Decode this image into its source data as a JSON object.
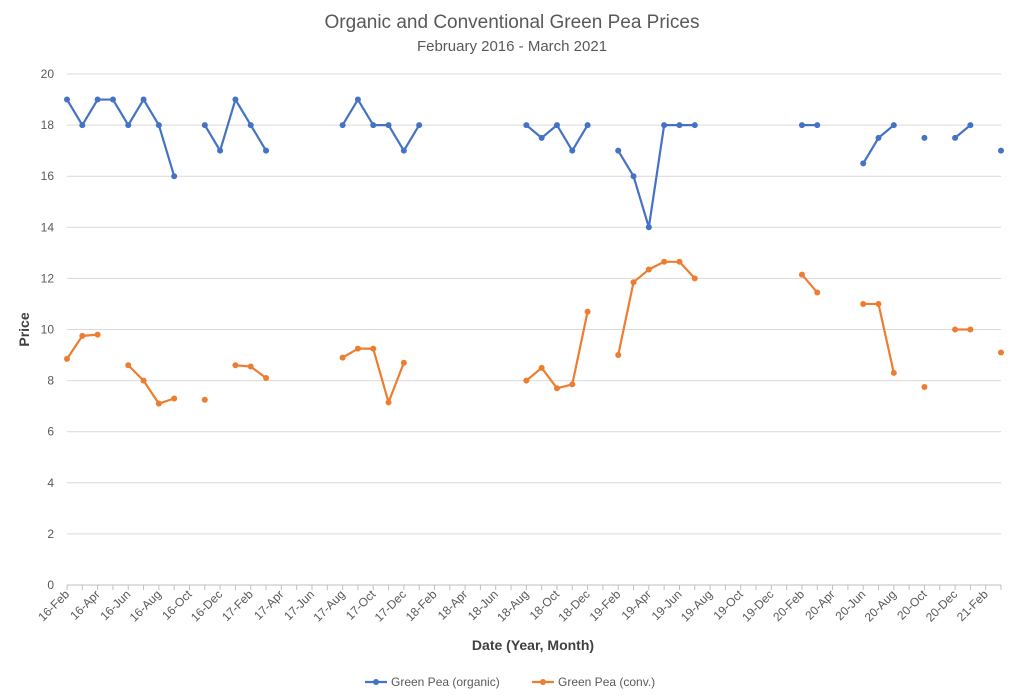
{
  "chart_data": {
    "type": "line",
    "title": "Organic and Conventional Green Pea Prices",
    "subtitle": "February 2016 - March 2021",
    "xlabel": "Date (Year, Month)",
    "ylabel": "Price",
    "ylim": [
      0,
      20
    ],
    "y_ticks": [
      0,
      2,
      4,
      6,
      8,
      10,
      12,
      14,
      16,
      18,
      20
    ],
    "grid": true,
    "legend_position": "bottom",
    "x_tick_labels": [
      "16-Feb",
      "16-Apr",
      "16-Jun",
      "16-Aug",
      "16-Oct",
      "16-Dec",
      "17-Feb",
      "17-Apr",
      "17-Jun",
      "17-Aug",
      "17-Oct",
      "17-Dec",
      "18-Feb",
      "18-Apr",
      "18-Jun",
      "18-Aug",
      "18-Oct",
      "18-Dec",
      "19-Feb",
      "19-Apr",
      "19-Jun",
      "19-Aug",
      "19-Oct",
      "19-Dec",
      "20-Feb",
      "20-Apr",
      "20-Jun",
      "20-Aug",
      "20-Oct",
      "20-Dec",
      "21-Feb"
    ],
    "x": [
      "2016-02",
      "2016-03",
      "2016-04",
      "2016-05",
      "2016-06",
      "2016-07",
      "2016-08",
      "2016-09",
      "2016-10",
      "2016-11",
      "2016-12",
      "2017-01",
      "2017-02",
      "2017-03",
      "2017-04",
      "2017-05",
      "2017-06",
      "2017-07",
      "2017-08",
      "2017-09",
      "2017-10",
      "2017-11",
      "2017-12",
      "2018-01",
      "2018-02",
      "2018-03",
      "2018-04",
      "2018-05",
      "2018-06",
      "2018-07",
      "2018-08",
      "2018-09",
      "2018-10",
      "2018-11",
      "2018-12",
      "2019-01",
      "2019-02",
      "2019-03",
      "2019-04",
      "2019-05",
      "2019-06",
      "2019-07",
      "2019-08",
      "2019-09",
      "2019-10",
      "2019-11",
      "2019-12",
      "2020-01",
      "2020-02",
      "2020-03",
      "2020-04",
      "2020-05",
      "2020-06",
      "2020-07",
      "2020-08",
      "2020-09",
      "2020-10",
      "2020-11",
      "2020-12",
      "2021-01",
      "2021-02",
      "2021-03"
    ],
    "series": [
      {
        "name": "Green Pea (organic)",
        "color": "#4472c4",
        "values": [
          19,
          18,
          19,
          19,
          18,
          19,
          18,
          16,
          null,
          18,
          17,
          19,
          18,
          17,
          null,
          null,
          null,
          null,
          18,
          19,
          18,
          18,
          17,
          18,
          null,
          null,
          null,
          null,
          null,
          null,
          18,
          17.5,
          18,
          17,
          18,
          null,
          17,
          16,
          14,
          18,
          18,
          18,
          null,
          null,
          null,
          null,
          null,
          null,
          18,
          18,
          null,
          null,
          16.5,
          17.5,
          18,
          null,
          17.5,
          null,
          17.5,
          18,
          null,
          17
        ]
      },
      {
        "name": "Green Pea (conv.)",
        "color": "#ed7d31",
        "values": [
          8.85,
          9.75,
          9.8,
          null,
          8.6,
          8.0,
          7.1,
          7.3,
          null,
          7.25,
          null,
          8.6,
          8.55,
          8.1,
          null,
          null,
          null,
          null,
          8.9,
          9.25,
          9.25,
          7.15,
          8.7,
          null,
          null,
          null,
          null,
          null,
          null,
          null,
          8.0,
          8.5,
          7.7,
          7.85,
          10.7,
          null,
          9.0,
          11.85,
          12.35,
          12.65,
          12.65,
          12.0,
          null,
          null,
          null,
          null,
          null,
          null,
          12.15,
          11.45,
          null,
          null,
          11.0,
          11.0,
          8.3,
          null,
          7.75,
          null,
          10.0,
          10.0,
          null,
          9.1
        ]
      }
    ]
  }
}
